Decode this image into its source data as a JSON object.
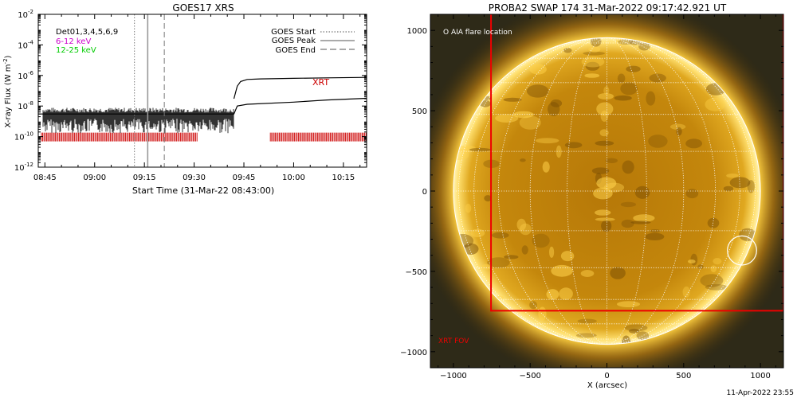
{
  "footer_timestamp": "11-Apr-2022 23:55",
  "chart_data": [
    {
      "type": "line",
      "title": "GOES17 XRS",
      "xlabel": "Start Time (31-Mar-22 08:43:00)",
      "ylabel": "X-ray Flux (W m",
      "ylabel_sup": "-2",
      "ylabel_close": ")",
      "y_scale": "log",
      "ylim": [
        1e-12,
        0.01
      ],
      "xlim": [
        "08:43",
        "10:22"
      ],
      "x_ticks": [
        "08:45",
        "09:00",
        "09:15",
        "09:30",
        "09:45",
        "10:00",
        "10:15"
      ],
      "y_ticks": [
        {
          "value": 0.01,
          "base": "10",
          "exp": "-2"
        },
        {
          "value": 0.0001,
          "base": "10",
          "exp": "-4"
        },
        {
          "value": 1e-06,
          "base": "10",
          "exp": "-6"
        },
        {
          "value": 1e-08,
          "base": "10",
          "exp": "-8"
        },
        {
          "value": 1e-10,
          "base": "10",
          "exp": "-10"
        },
        {
          "value": 1e-12,
          "base": "10",
          "exp": "-12"
        }
      ],
      "channel_labels": [
        {
          "text": "Det01,3,4,5,6,9",
          "color": "#000000"
        },
        {
          "text": "6-12 keV",
          "color": "#cc00cc"
        },
        {
          "text": "12-25 keV",
          "color": "#00cc00"
        }
      ],
      "legend": [
        {
          "name": "GOES Start",
          "style": "dotted"
        },
        {
          "name": "GOES Peak",
          "style": "solid"
        },
        {
          "name": "GOES End",
          "style": "dashed"
        }
      ],
      "event_lines": [
        {
          "name": "GOES Start",
          "time": "09:12"
        },
        {
          "name": "GOES Peak",
          "time": "09:16"
        },
        {
          "name": "GOES End",
          "time": "09:21"
        }
      ],
      "series": [
        {
          "name": "upper",
          "points": [
            [
              "09:42",
              3e-08
            ],
            [
              "09:43",
              2e-07
            ],
            [
              "09:44",
              4e-07
            ],
            [
              "09:46",
              5.5e-07
            ],
            [
              "09:50",
              6e-07
            ],
            [
              "10:00",
              6.5e-07
            ],
            [
              "10:10",
              7e-07
            ],
            [
              "10:22",
              7.5e-07
            ]
          ]
        },
        {
          "name": "lower",
          "points": [
            [
              "08:43",
              3e-09
            ],
            [
              "09:00",
              3e-09
            ],
            [
              "09:30",
              3e-09
            ],
            [
              "09:42",
              3e-09
            ],
            [
              "09:43",
              1e-08
            ],
            [
              "09:46",
              1.3e-08
            ],
            [
              "10:00",
              1.8e-08
            ],
            [
              "10:10",
              2.5e-08
            ],
            [
              "10:22",
              3.2e-08
            ]
          ]
        }
      ],
      "xrt_label": "XRT",
      "xrt_label_color": "#cc0000",
      "xrt_coverage": [
        [
          "08:43",
          "09:31"
        ],
        [
          "09:52",
          "10:22"
        ]
      ]
    },
    {
      "type": "image",
      "title": "PROBA2 SWAP 174 31-Mar-2022 09:17:42.921 UT",
      "xlabel": "X (arcsec)",
      "xlim": [
        -1150,
        1150
      ],
      "ylim": [
        -1100,
        1100
      ],
      "x_ticks": [
        -1000,
        -500,
        0,
        500,
        1000
      ],
      "x_tick_labels": [
        "−1000",
        "−500",
        "0",
        "500",
        "1000"
      ],
      "y_ticks": [
        1000,
        500,
        0,
        -500,
        -1000
      ],
      "y_tick_labels": [
        "1000",
        "500",
        "0",
        "−500",
        "−1000"
      ],
      "solar_radius_arcsec": 1000,
      "flare_legend": "O AIA flare location",
      "flare_location": [
        880,
        -370
      ],
      "flare_circle_radius_arcsec": 95,
      "fov_label": "XRT FOV",
      "fov_color": "#ee0000",
      "xrt_fov": [
        -755,
        -745,
        1150,
        1110
      ]
    }
  ]
}
